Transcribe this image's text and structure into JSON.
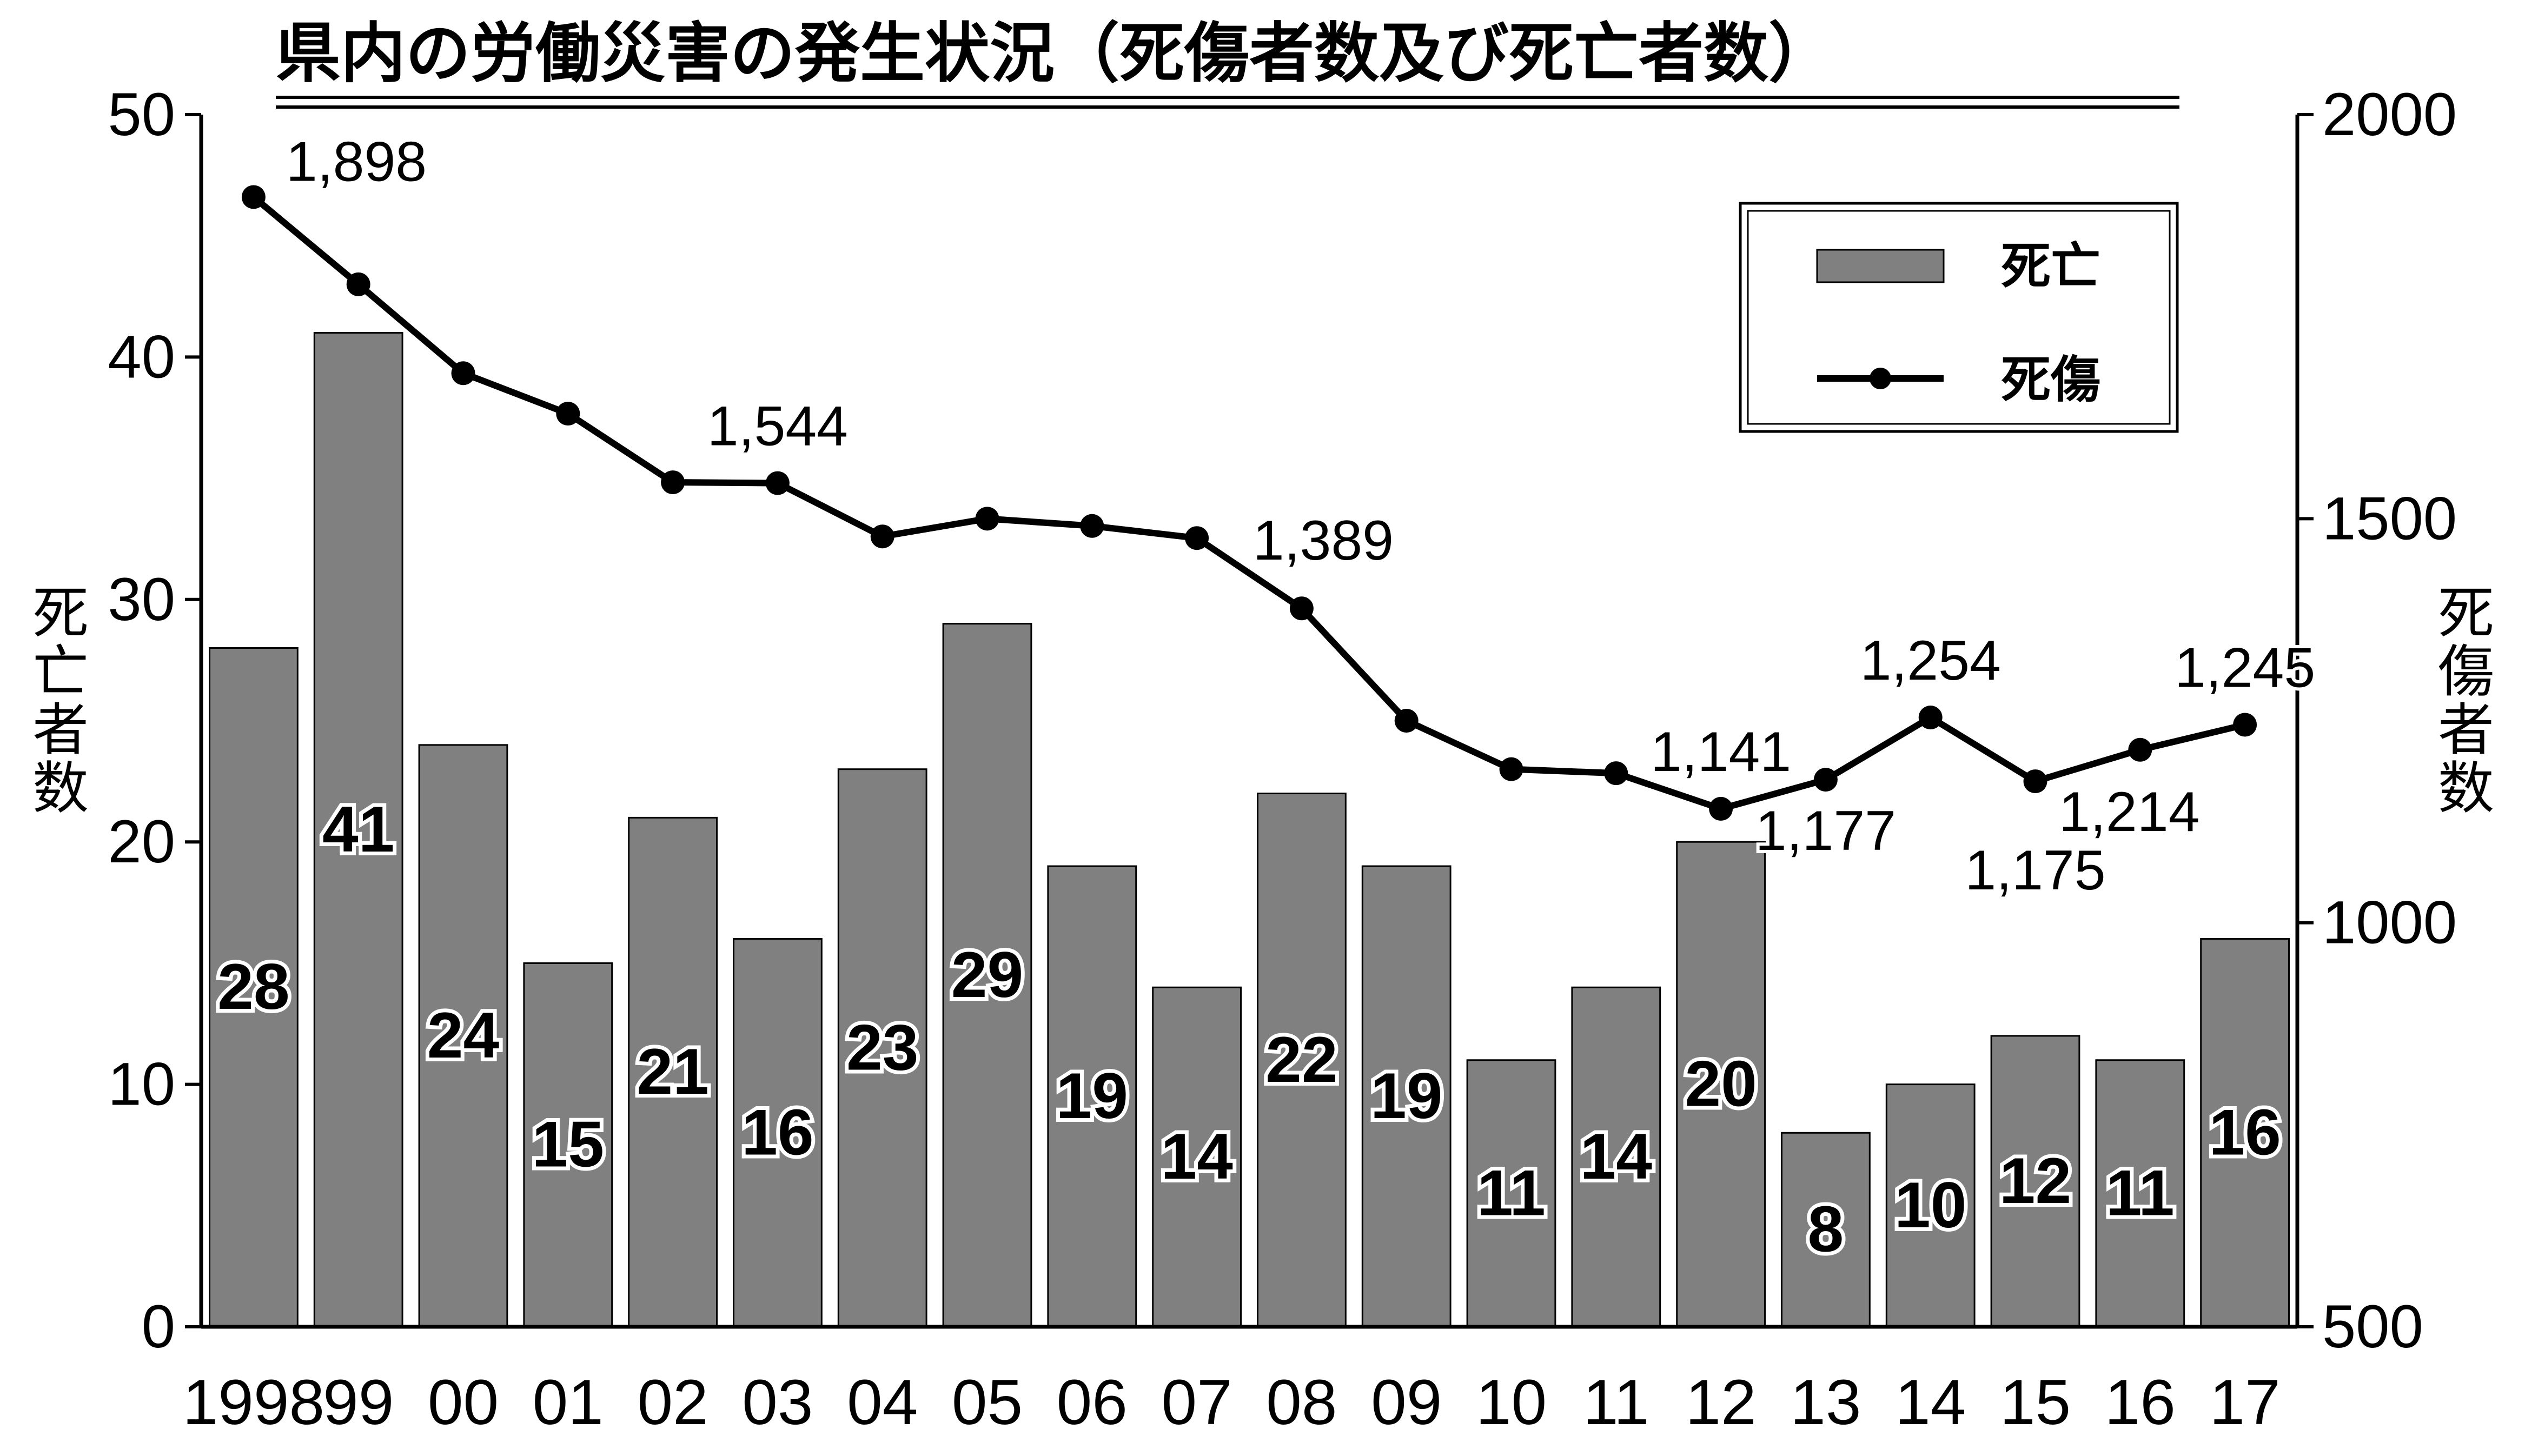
{
  "chart_data": {
    "type": "bar",
    "title": "県内の労働災害の発生状況（死傷者数及び死亡者数）",
    "categories": [
      "1998",
      "99",
      "00",
      "01",
      "02",
      "03",
      "04",
      "05",
      "06",
      "07",
      "08",
      "09",
      "10",
      "11",
      "12",
      "13",
      "14",
      "15",
      "16",
      "17"
    ],
    "series": [
      {
        "name": "死亡",
        "type": "bar",
        "axis": "left",
        "color": "#808080",
        "values": [
          28,
          41,
          24,
          15,
          21,
          16,
          23,
          29,
          19,
          14,
          22,
          19,
          11,
          14,
          20,
          8,
          10,
          12,
          11,
          16
        ],
        "value_labels": [
          "28",
          "41",
          "24",
          "15",
          "21",
          "16",
          "23",
          "29",
          "19",
          "14",
          "22",
          "19",
          "11",
          "14",
          "20",
          "8",
          "10",
          "12",
          "11",
          "16"
        ]
      },
      {
        "name": "死傷",
        "type": "line",
        "axis": "right",
        "color": "#000000",
        "values": [
          1898,
          1790,
          1680,
          1630,
          1545,
          1544,
          1478,
          1500,
          1491,
          1476,
          1389,
          1250,
          1190,
          1185,
          1141,
          1177,
          1254,
          1175,
          1214,
          1245
        ]
      }
    ],
    "line_callouts": [
      {
        "index": 0,
        "text": "1,898"
      },
      {
        "index": 5,
        "text": "1,544"
      },
      {
        "index": 10,
        "text": "1,389"
      },
      {
        "index": 14,
        "text": "1,141"
      },
      {
        "index": 15,
        "text": "1,177"
      },
      {
        "index": 16,
        "text": "1,254"
      },
      {
        "index": 17,
        "text": "1,175"
      },
      {
        "index": 18,
        "text": "1,214"
      },
      {
        "index": 19,
        "text": "1,245"
      }
    ],
    "y_left": {
      "label": "死亡者数",
      "ylim": [
        0,
        50
      ],
      "ticks": [
        "0",
        "10",
        "20",
        "30",
        "40",
        "50"
      ]
    },
    "y_right": {
      "label": "死傷者数",
      "ylim": [
        500,
        2000
      ],
      "ticks": [
        "500",
        "1000",
        "1500",
        "2000"
      ]
    },
    "legend": {
      "placement": "top-right",
      "items": [
        "死亡",
        "死傷"
      ]
    },
    "grid": false
  }
}
